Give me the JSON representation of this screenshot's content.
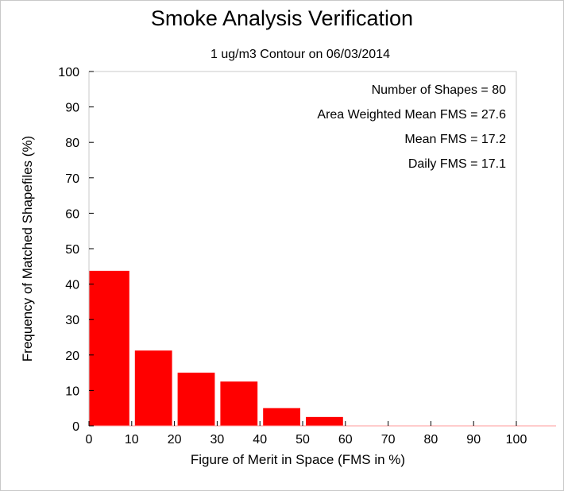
{
  "chart_data": {
    "type": "bar",
    "title": "Smoke Analysis Verification",
    "subtitle": "1 ug/m3 Contour on 06/03/2014",
    "xlabel": "Figure of Merit in Space (FMS in %)",
    "ylabel": "Frequency of Matched Shapefiles (%)",
    "xlim": [
      0,
      100
    ],
    "ylim": [
      0,
      100
    ],
    "x_ticks": [
      "0",
      "10",
      "20",
      "30",
      "40",
      "50",
      "60",
      "70",
      "80",
      "90",
      "100"
    ],
    "y_ticks": [
      "0",
      "10",
      "20",
      "30",
      "40",
      "50",
      "60",
      "70",
      "80",
      "90",
      "100"
    ],
    "bins": [
      {
        "start": 0,
        "end": 10,
        "value": 43.75
      },
      {
        "start": 10,
        "end": 20,
        "value": 21.25
      },
      {
        "start": 20,
        "end": 30,
        "value": 15.0
      },
      {
        "start": 30,
        "end": 40,
        "value": 12.5
      },
      {
        "start": 40,
        "end": 50,
        "value": 5.0
      },
      {
        "start": 50,
        "end": 60,
        "value": 2.5
      },
      {
        "start": 60,
        "end": 70,
        "value": 0
      },
      {
        "start": 70,
        "end": 80,
        "value": 0
      },
      {
        "start": 80,
        "end": 90,
        "value": 0
      },
      {
        "start": 90,
        "end": 100,
        "value": 0
      }
    ],
    "annotations": [
      "Number of Shapes = 80",
      "Area Weighted Mean FMS = 27.6",
      "Mean FMS = 17.2",
      "Daily FMS = 17.1"
    ],
    "bar_color": "#ff0000",
    "grid": false
  }
}
